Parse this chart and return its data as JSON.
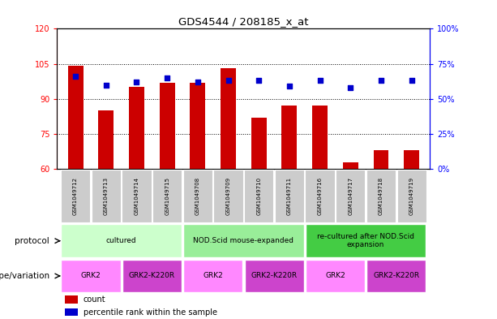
{
  "title": "GDS4544 / 208185_x_at",
  "samples": [
    "GSM1049712",
    "GSM1049713",
    "GSM1049714",
    "GSM1049715",
    "GSM1049708",
    "GSM1049709",
    "GSM1049710",
    "GSM1049711",
    "GSM1049716",
    "GSM1049717",
    "GSM1049718",
    "GSM1049719"
  ],
  "counts": [
    104,
    85,
    95,
    97,
    97,
    103,
    82,
    87,
    87,
    63,
    68,
    68
  ],
  "percentile_ranks": [
    66,
    60,
    62,
    65,
    62,
    63,
    63,
    59,
    63,
    58,
    63,
    63
  ],
  "ylim_left": [
    60,
    120
  ],
  "ylim_right": [
    0,
    100
  ],
  "yticks_left": [
    60,
    75,
    90,
    105,
    120
  ],
  "yticks_right": [
    0,
    25,
    50,
    75,
    100
  ],
  "ytick_labels_right": [
    "0%",
    "25%",
    "50%",
    "75%",
    "100%"
  ],
  "bar_color": "#cc0000",
  "dot_color": "#0000cc",
  "grid_color": "#000000",
  "protocol_row": {
    "label": "protocol",
    "groups": [
      {
        "label": "cultured",
        "start": 0,
        "end": 3,
        "color": "#ccffcc"
      },
      {
        "label": "NOD.Scid mouse-expanded",
        "start": 4,
        "end": 7,
        "color": "#99ee99"
      },
      {
        "label": "re-cultured after NOD.Scid\nexpansion",
        "start": 8,
        "end": 11,
        "color": "#44cc44"
      }
    ]
  },
  "genotype_row": {
    "label": "genotype/variation",
    "groups": [
      {
        "label": "GRK2",
        "start": 0,
        "end": 1,
        "color": "#ff88ff"
      },
      {
        "label": "GRK2-K220R",
        "start": 2,
        "end": 3,
        "color": "#cc44cc"
      },
      {
        "label": "GRK2",
        "start": 4,
        "end": 5,
        "color": "#ff88ff"
      },
      {
        "label": "GRK2-K220R",
        "start": 6,
        "end": 7,
        "color": "#cc44cc"
      },
      {
        "label": "GRK2",
        "start": 8,
        "end": 9,
        "color": "#ff88ff"
      },
      {
        "label": "GRK2-K220R",
        "start": 10,
        "end": 11,
        "color": "#cc44cc"
      }
    ]
  },
  "legend_items": [
    {
      "label": "count",
      "color": "#cc0000"
    },
    {
      "label": "percentile rank within the sample",
      "color": "#0000cc"
    }
  ],
  "background_color": "#ffffff"
}
